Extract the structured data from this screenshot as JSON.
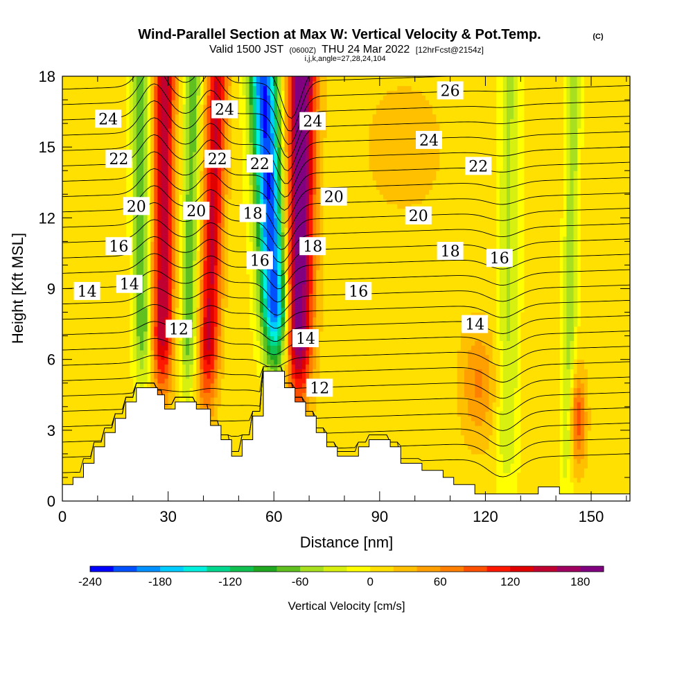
{
  "header": {
    "title": "Wind-Parallel Section at Max W: Vertical Velocity & Pot.Temp.",
    "copyright": "(C)",
    "valid_prefix": "Valid 1500 JST",
    "valid_utc": "(0600Z)",
    "valid_suffix": "THU 24 Mar 2022",
    "forecast": "[12hrFcst@2154z]",
    "params": "i,j,k,angle=27,28,24,104"
  },
  "chart_data": {
    "type": "heatmap",
    "title": "Wind-Parallel Section at Max W: Vertical Velocity & Pot.Temp.",
    "xlabel": "Distance [nm]",
    "ylabel": "Height [Kft MSL]",
    "xlim": [
      0,
      161
    ],
    "ylim": [
      0,
      18
    ],
    "xticks": [
      0,
      30,
      60,
      90,
      120,
      150
    ],
    "yticks": [
      0,
      3,
      6,
      9,
      12,
      15,
      18
    ],
    "colorbar": {
      "label": "Vertical Velocity [cm/s]",
      "min": -240,
      "max": 200,
      "step": 20,
      "tick_labels": [
        -240,
        -180,
        -120,
        -60,
        0,
        60,
        120,
        180
      ],
      "colors": [
        "#0000ff",
        "#0050ff",
        "#0090ff",
        "#00ccff",
        "#00f0e0",
        "#00d890",
        "#10c050",
        "#20a820",
        "#60c020",
        "#a8e020",
        "#d8f010",
        "#ffff00",
        "#ffe000",
        "#ffc000",
        "#ffa000",
        "#ff8000",
        "#ff5000",
        "#ff1800",
        "#e00000",
        "#c00030",
        "#a00060",
        "#800080"
      ]
    },
    "updraft_bands": [
      {
        "center_bottom": 28,
        "center_top": 29,
        "peak_w": 150,
        "half_width": 3
      },
      {
        "center_bottom": 40,
        "center_top": 44,
        "peak_w": 135,
        "half_width": 3
      },
      {
        "center_bottom": 66,
        "center_top": 68,
        "peak_w": 200,
        "half_width": 4
      }
    ],
    "downdraft_bands": [
      {
        "center_bottom": 23,
        "center_top": 22,
        "peak_w": -90,
        "half_width": 2.5
      },
      {
        "center_bottom": 35,
        "center_top": 37,
        "peak_w": -80,
        "half_width": 2.5
      },
      {
        "center_bottom": 63,
        "center_top": 57,
        "peak_w": -230,
        "half_width": 4
      },
      {
        "center_bottom": 126,
        "center_top": 127,
        "peak_w": -50,
        "half_width": 3
      },
      {
        "center_bottom": 143,
        "center_top": 145,
        "peak_w": -60,
        "half_width": 2
      }
    ],
    "terrain_nm": [
      0,
      0.7,
      3,
      0.7,
      3,
      1.0,
      6,
      1.0,
      6,
      1.6,
      9,
      1.6,
      9,
      2.3,
      12,
      2.3,
      12,
      2.9,
      15,
      2.9,
      15,
      3.5,
      18,
      3.5,
      18,
      4.2,
      21,
      4.2,
      21,
      4.8,
      27,
      4.8,
      27,
      4.5,
      29,
      4.5,
      29,
      3.9,
      32,
      3.9,
      32,
      4.2,
      38,
      4.2,
      38,
      3.9,
      42,
      3.9,
      42,
      3.2,
      45,
      3.2,
      45,
      2.6,
      48,
      2.6,
      48,
      1.9,
      51,
      1.9,
      51,
      2.6,
      54,
      2.6,
      54,
      3.6,
      57,
      3.6,
      57,
      5.5,
      63,
      5.5,
      63,
      4.8,
      66,
      4.8,
      66,
      4.2,
      69,
      4.2,
      69,
      3.6,
      72,
      3.6,
      72,
      2.9,
      75,
      2.9,
      75,
      2.3,
      78,
      2.3,
      78,
      1.9,
      84,
      1.9,
      84,
      2.3,
      87,
      2.3,
      87,
      2.6,
      93,
      2.6,
      93,
      2.3,
      96,
      2.3,
      96,
      1.6,
      102,
      1.6,
      102,
      1.3,
      108,
      1.3,
      108,
      1.0,
      111,
      1.0,
      111,
      0.7,
      117,
      0.7,
      117,
      0.3,
      135,
      0.3,
      135,
      0.6,
      141,
      0.6,
      141,
      0.3,
      161,
      0.3
    ],
    "theta_contour_labels": [
      {
        "text": "24",
        "x": 13,
        "y": 16.2
      },
      {
        "text": "22",
        "x": 16,
        "y": 14.5
      },
      {
        "text": "20",
        "x": 21,
        "y": 12.5
      },
      {
        "text": "16",
        "x": 16,
        "y": 10.8
      },
      {
        "text": "14",
        "x": 7,
        "y": 8.9
      },
      {
        "text": "14",
        "x": 19,
        "y": 9.2
      },
      {
        "text": "12",
        "x": 33,
        "y": 7.3
      },
      {
        "text": "20",
        "x": 38,
        "y": 12.3
      },
      {
        "text": "24",
        "x": 46,
        "y": 16.6
      },
      {
        "text": "22",
        "x": 44,
        "y": 14.5
      },
      {
        "text": "22",
        "x": 56,
        "y": 14.3
      },
      {
        "text": "18",
        "x": 54,
        "y": 12.2
      },
      {
        "text": "16",
        "x": 56,
        "y": 10.2
      },
      {
        "text": "24",
        "x": 71,
        "y": 16.1
      },
      {
        "text": "20",
        "x": 77,
        "y": 12.9
      },
      {
        "text": "18",
        "x": 71,
        "y": 10.8
      },
      {
        "text": "14",
        "x": 69,
        "y": 6.9
      },
      {
        "text": "12",
        "x": 73,
        "y": 4.8
      },
      {
        "text": "16",
        "x": 84,
        "y": 8.9
      },
      {
        "text": "24",
        "x": 104,
        "y": 15.3
      },
      {
        "text": "26",
        "x": 110,
        "y": 17.4
      },
      {
        "text": "22",
        "x": 118,
        "y": 14.2
      },
      {
        "text": "20",
        "x": 101,
        "y": 12.1
      },
      {
        "text": "18",
        "x": 110,
        "y": 10.6
      },
      {
        "text": "16",
        "x": 124,
        "y": 10.3
      },
      {
        "text": "14",
        "x": 117,
        "y": 7.5
      }
    ]
  }
}
